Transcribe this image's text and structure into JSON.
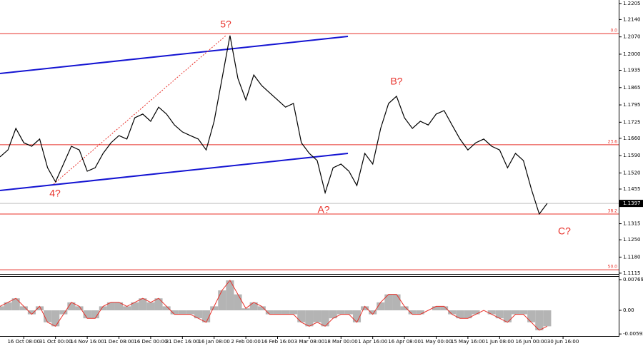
{
  "chart_data": [
    {
      "type": "line",
      "categories": [
        null,
        null,
        null,
        "16 Oct 08:00",
        null,
        null,
        null,
        "31 Oct 00:00",
        null,
        null,
        null,
        "14 Nov 16:00",
        null,
        null,
        null,
        "1 Dec 08:00",
        null,
        null,
        null,
        "16 Dec 00:00",
        null,
        null,
        null,
        "31 Dec 16:00",
        null,
        null,
        null,
        "16 Jan 08:00",
        null,
        null,
        null,
        "2 Feb 00:00",
        null,
        null,
        null,
        "16 Feb 16:00",
        null,
        null,
        null,
        "3 Mar 08:00",
        null,
        null,
        null,
        "18 Mar 00:00",
        null,
        null,
        null,
        "1 Apr 16:00",
        null,
        null,
        null,
        "16 Apr 08:00",
        null,
        null,
        null,
        "1 May 00:00",
        null,
        null,
        null,
        "15 May 16:00",
        null,
        null,
        null,
        "1 Jun 08:00",
        null,
        null,
        null,
        "16 Jun 00:00",
        null,
        null,
        null,
        "30 Jun 16:00"
      ],
      "series": [
        {
          "color": "#000000",
          "values": [
            1.1585,
            1.1613,
            1.17,
            1.1642,
            1.1628,
            1.1657,
            1.1541,
            1.1484,
            1.1556,
            1.1628,
            1.1613,
            1.1527,
            1.1541,
            1.1599,
            1.1642,
            1.1671,
            1.1657,
            1.1743,
            1.1758,
            1.1729,
            1.1786,
            1.1758,
            1.1714,
            1.1686,
            1.1671,
            1.1657,
            1.1613,
            1.1729,
            1.1902,
            1.2075,
            1.1902,
            1.1815,
            1.1916,
            1.1873,
            1.1844,
            1.1815,
            1.1786,
            1.1801,
            1.1642,
            1.1599,
            1.157,
            1.144,
            1.1541,
            1.1556,
            1.1527,
            1.1469,
            1.1599,
            1.1556,
            1.17,
            1.1801,
            1.183,
            1.1743,
            1.17,
            1.1729,
            1.1714,
            1.1758,
            1.1772,
            1.1714,
            1.1657,
            1.1613,
            1.1642,
            1.1657,
            1.1628,
            1.1613,
            1.1541,
            1.1599,
            1.157,
            1.1455,
            1.1354,
            1.1397,
            null,
            null
          ]
        }
      ],
      "ylim": [
        1.1109,
        1.2219
      ],
      "yticks": [
        1.2205,
        {
          "value": 1.214,
          "label": "1.2140"
        },
        {
          "value": 1.207,
          "label": "1.2070"
        },
        {
          "value": 1.2,
          "label": "1.2000"
        },
        1.1935,
        1.1865,
        1.1795,
        1.1725,
        {
          "value": 1.166,
          "label": "1.1660"
        },
        {
          "value": 1.159,
          "label": "1.1590"
        },
        {
          "value": 1.152,
          "label": "1.1520"
        },
        1.1455,
        1.1315,
        {
          "value": 1.125,
          "label": "1.1250"
        },
        {
          "value": 1.118,
          "label": "1.1180"
        },
        1.1115
      ],
      "last_price": 1.1397,
      "levels": [
        {
          "label": "0.0",
          "value": 1.2083,
          "color": "#e8312a"
        },
        {
          "label": "23.6",
          "value": 1.1634,
          "color": "#e8312a"
        },
        {
          "label": "38.2",
          "value": 1.1354,
          "color": "#e8312a"
        },
        {
          "label": "50.0",
          "value": 1.1129,
          "color": "#e8312a"
        }
      ],
      "annotations": [
        "5?",
        "4?",
        "A?",
        "B?",
        "C?"
      ]
    },
    {
      "type": "histogram-oscillator",
      "series": [
        {
          "color": "#b4b4b4",
          "line_color": "#e8312a",
          "values": [
            0.001,
            0.002,
            0.003,
            0.001,
            -0.001,
            0.001,
            -0.003,
            -0.004,
            -0.001,
            0.002,
            0.001,
            -0.002,
            -0.002,
            0.001,
            0.002,
            0.002,
            0.001,
            0.002,
            0.003,
            0.002,
            0.003,
            0.001,
            -0.001,
            -0.001,
            -0.001,
            -0.002,
            -0.003,
            0.001,
            0.005,
            0.0075,
            0.004,
            0.0005,
            0.002,
            0.001,
            -0.001,
            -0.001,
            -0.001,
            -0.001,
            -0.003,
            -0.004,
            -0.003,
            -0.004,
            -0.002,
            -0.001,
            -0.001,
            -0.003,
            0.001,
            -0.001,
            0.002,
            0.004,
            0.004,
            0.001,
            -0.001,
            -0.001,
            0,
            0.001,
            0.001,
            -0.001,
            -0.002,
            -0.002,
            -0.001,
            0,
            -0.001,
            -0.002,
            -0.003,
            -0.001,
            -0.001,
            -0.003,
            -0.005,
            -0.004,
            null,
            null
          ]
        }
      ],
      "ylim": [
        -0.00662,
        0.00858
      ],
      "yticks": [
        0.00769,
        {
          "value": 0,
          "label": "0.00"
        },
        -0.00593
      ]
    }
  ]
}
